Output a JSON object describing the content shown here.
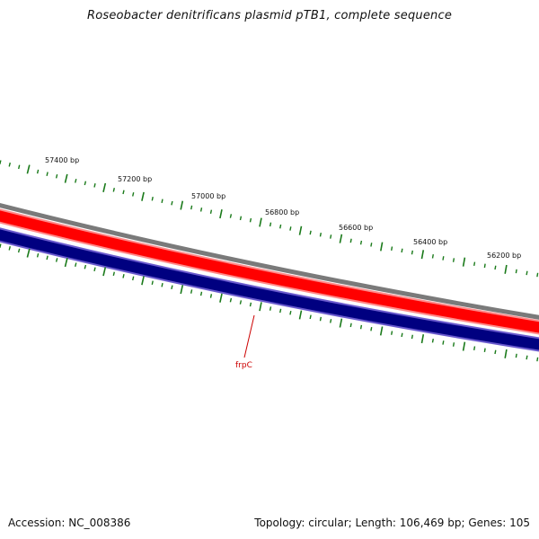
{
  "title": "Roseobacter denitrificans plasmid pTB1, complete sequence",
  "accession": "Accession: NC_008386",
  "summary": "Topology: circular; Length: 106,469 bp; Genes: 105",
  "colors": {
    "backbone_gray": "#7a7a7a",
    "forward_strand_red": "#ff0000",
    "forward_strand_light": "#ff8080",
    "reverse_strand_navy": "#000080",
    "reverse_strand_edge": "#6a5acd",
    "ticks_green": "#1a7a1a",
    "gene_label_red": "#cc0000"
  },
  "ruler": {
    "labels": [
      "57400 bp",
      "57200 bp",
      "57000 bp",
      "56800 bp",
      "56600 bp",
      "56400 bp",
      "56200 bp"
    ]
  },
  "genes": [
    {
      "name": "frpC"
    }
  ]
}
